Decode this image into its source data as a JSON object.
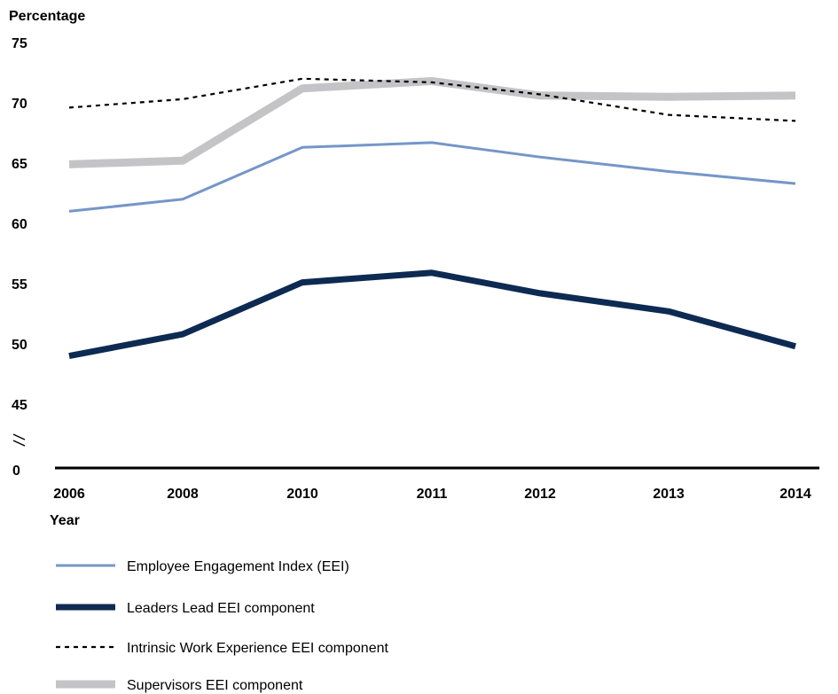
{
  "chart_data": {
    "type": "line",
    "ylabel": "Percentage",
    "xlabel": "Year",
    "categories": [
      "2006",
      "2008",
      "2010",
      "2011",
      "2012",
      "2013",
      "2014"
    ],
    "y_ticks": [
      {
        "value": 45,
        "label": "45"
      },
      {
        "value": 50,
        "label": "50"
      },
      {
        "value": 55,
        "label": "55"
      },
      {
        "value": 60,
        "label": "60"
      },
      {
        "value": 65,
        "label": "65"
      },
      {
        "value": 70,
        "label": "70"
      },
      {
        "value": 75,
        "label": "75"
      }
    ],
    "y_zero_label": "0",
    "axis_break": true,
    "ylim": [
      45,
      75
    ],
    "grid": false,
    "legend_position": "bottom",
    "series": [
      {
        "name": "Employee Engagement Index (EEI)",
        "values": [
          61,
          62,
          66.3,
          66.7,
          65.5,
          64.3,
          63.3
        ],
        "color": "#7596c8",
        "style": "solid-medium"
      },
      {
        "name": "Leaders Lead EEI component",
        "values": [
          49,
          50.8,
          55.1,
          55.9,
          54.2,
          52.7,
          49.8
        ],
        "color": "#0d2a52",
        "style": "solid-thick"
      },
      {
        "name": "Intrinsic Work Experience EEI component",
        "values": [
          69.6,
          70.3,
          72,
          71.7,
          70.7,
          69,
          68.5
        ],
        "color": "#000000",
        "style": "dashed"
      },
      {
        "name": "Supervisors EEI component",
        "values": [
          64.9,
          65.2,
          71.2,
          71.8,
          70.6,
          70.5,
          70.6
        ],
        "color": "#c4c4c6",
        "style": "solid-wide"
      }
    ]
  }
}
